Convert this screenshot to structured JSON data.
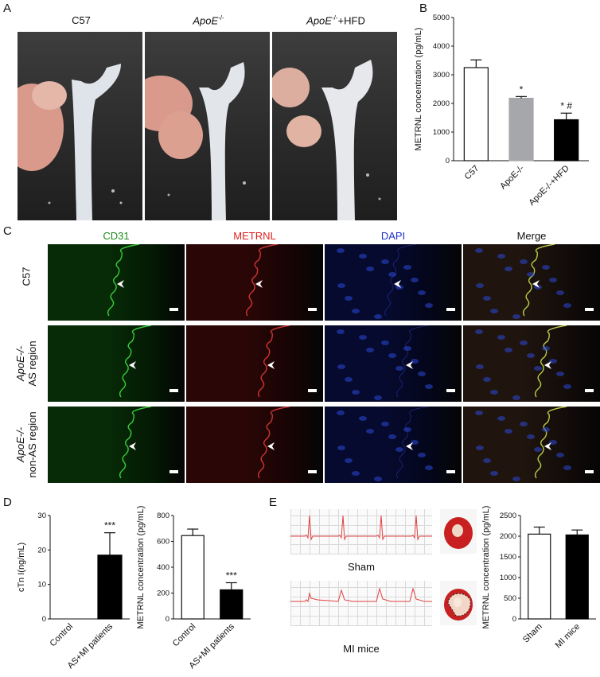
{
  "panels": {
    "A": "A",
    "B": "B",
    "C": "C",
    "D": "D",
    "E": "E"
  },
  "panelA": {
    "titles": [
      "C57",
      "ApoE",
      "ApoE"
    ],
    "title_sup": "-/-",
    "title3_suffix": "+HFD"
  },
  "chartB": {
    "ylabel": "METRNL concentration (pg/mL)",
    "categories": [
      "C57",
      "ApoE-/-",
      "ApoE-/-+HFD"
    ],
    "values": [
      3250,
      2180,
      1430
    ],
    "errors": [
      270,
      60,
      230
    ],
    "ylim": [
      0,
      5000
    ],
    "yticks": [
      "0",
      "1000",
      "2000",
      "3000",
      "4000",
      "5000"
    ],
    "sig": [
      "",
      "*",
      "* #"
    ]
  },
  "panelC": {
    "columns": [
      "CD31",
      "METRNL",
      "DAPI",
      "Merge"
    ],
    "column_colors": [
      "#1e8b1e",
      "#e02020",
      "#2030c8",
      "#111111"
    ],
    "rows": [
      {
        "line1": "C57",
        "line2": ""
      },
      {
        "line1": "ApoE-/-",
        "line2": "AS region"
      },
      {
        "line1": "ApoE-/-",
        "line2": "non-AS region"
      }
    ]
  },
  "chartD1": {
    "ylabel": "cTn I(ng/mL)",
    "categories": [
      "Control",
      "AS+MI patients"
    ],
    "values": [
      0,
      18.5
    ],
    "errors": [
      0,
      6.5
    ],
    "ylim": [
      0,
      30
    ],
    "yticks": [
      "0",
      "10",
      "20",
      "30"
    ],
    "sig": [
      "",
      "***"
    ]
  },
  "chartD2": {
    "ylabel": "METRNL concentration (pg/mL)",
    "categories": [
      "Control",
      "AS+MI patients"
    ],
    "values": [
      645,
      225
    ],
    "errors": [
      50,
      55
    ],
    "ylim": [
      0,
      800
    ],
    "yticks": [
      "0",
      "200",
      "400",
      "600",
      "800"
    ],
    "sig": [
      "",
      "***"
    ]
  },
  "panelE": {
    "ecg_labels": [
      "Sham",
      "MI mice"
    ]
  },
  "chartE": {
    "ylabel": "METRNL concentration (pg/mL)",
    "categories": [
      "Sham",
      "MI mice"
    ],
    "values": [
      2050,
      2030
    ],
    "errors": [
      170,
      120
    ],
    "ylim": [
      0,
      2500
    ],
    "yticks": [
      "0",
      "500",
      "1000",
      "1500",
      "2000",
      "2500"
    ]
  }
}
